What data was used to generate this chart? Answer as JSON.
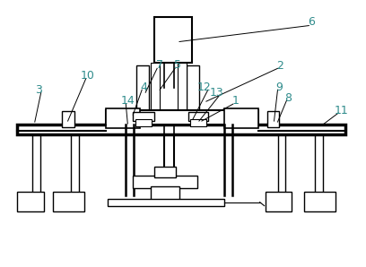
{
  "bg_color": "#ffffff",
  "line_color": "#000000",
  "label_color": "#2e8b8b",
  "fig_width": 4.08,
  "fig_height": 2.98,
  "dpi": 100
}
